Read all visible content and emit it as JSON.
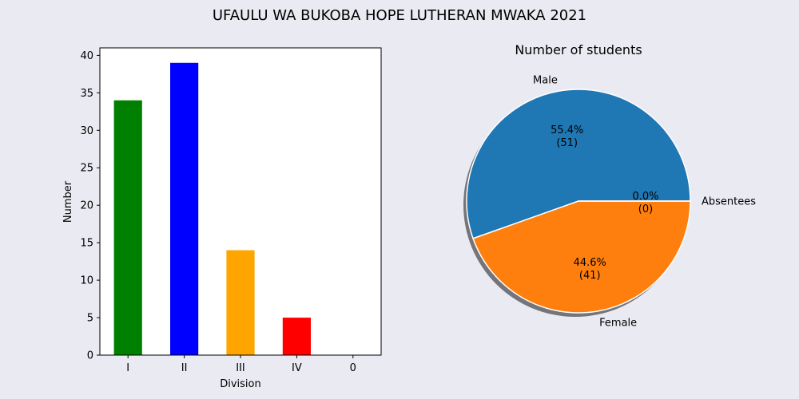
{
  "figure": {
    "title": "UFAULU WA BUKOBA HOPE LUTHERAN MWAKA 2021",
    "background": "#eaeaf2"
  },
  "chart_data": [
    {
      "type": "bar",
      "title": "",
      "xlabel": "Division",
      "ylabel": "Number",
      "categories": [
        "I",
        "II",
        "III",
        "IV",
        "0"
      ],
      "values": [
        34,
        39,
        14,
        5,
        0
      ],
      "colors": [
        "#008000",
        "#0000ff",
        "#ffa500",
        "#ff0000",
        "#800080"
      ],
      "ylim": [
        0,
        41
      ],
      "yticks": [
        0,
        5,
        10,
        15,
        20,
        25,
        30,
        35,
        40
      ],
      "grid": false,
      "plot_background": "#ffffff"
    },
    {
      "type": "pie",
      "title": "Number of students",
      "labels": [
        "Male",
        "Female",
        "Absentees"
      ],
      "values": [
        51,
        41,
        0
      ],
      "percent_labels": [
        "55.4%",
        "44.6%",
        "0.0%"
      ],
      "count_labels": [
        "(51)",
        "(41)",
        "(0)"
      ],
      "colors": [
        "#1f77b4",
        "#ff7f0e",
        "#2ca02c"
      ],
      "shadow": true,
      "start_angle_deg": 0
    }
  ]
}
